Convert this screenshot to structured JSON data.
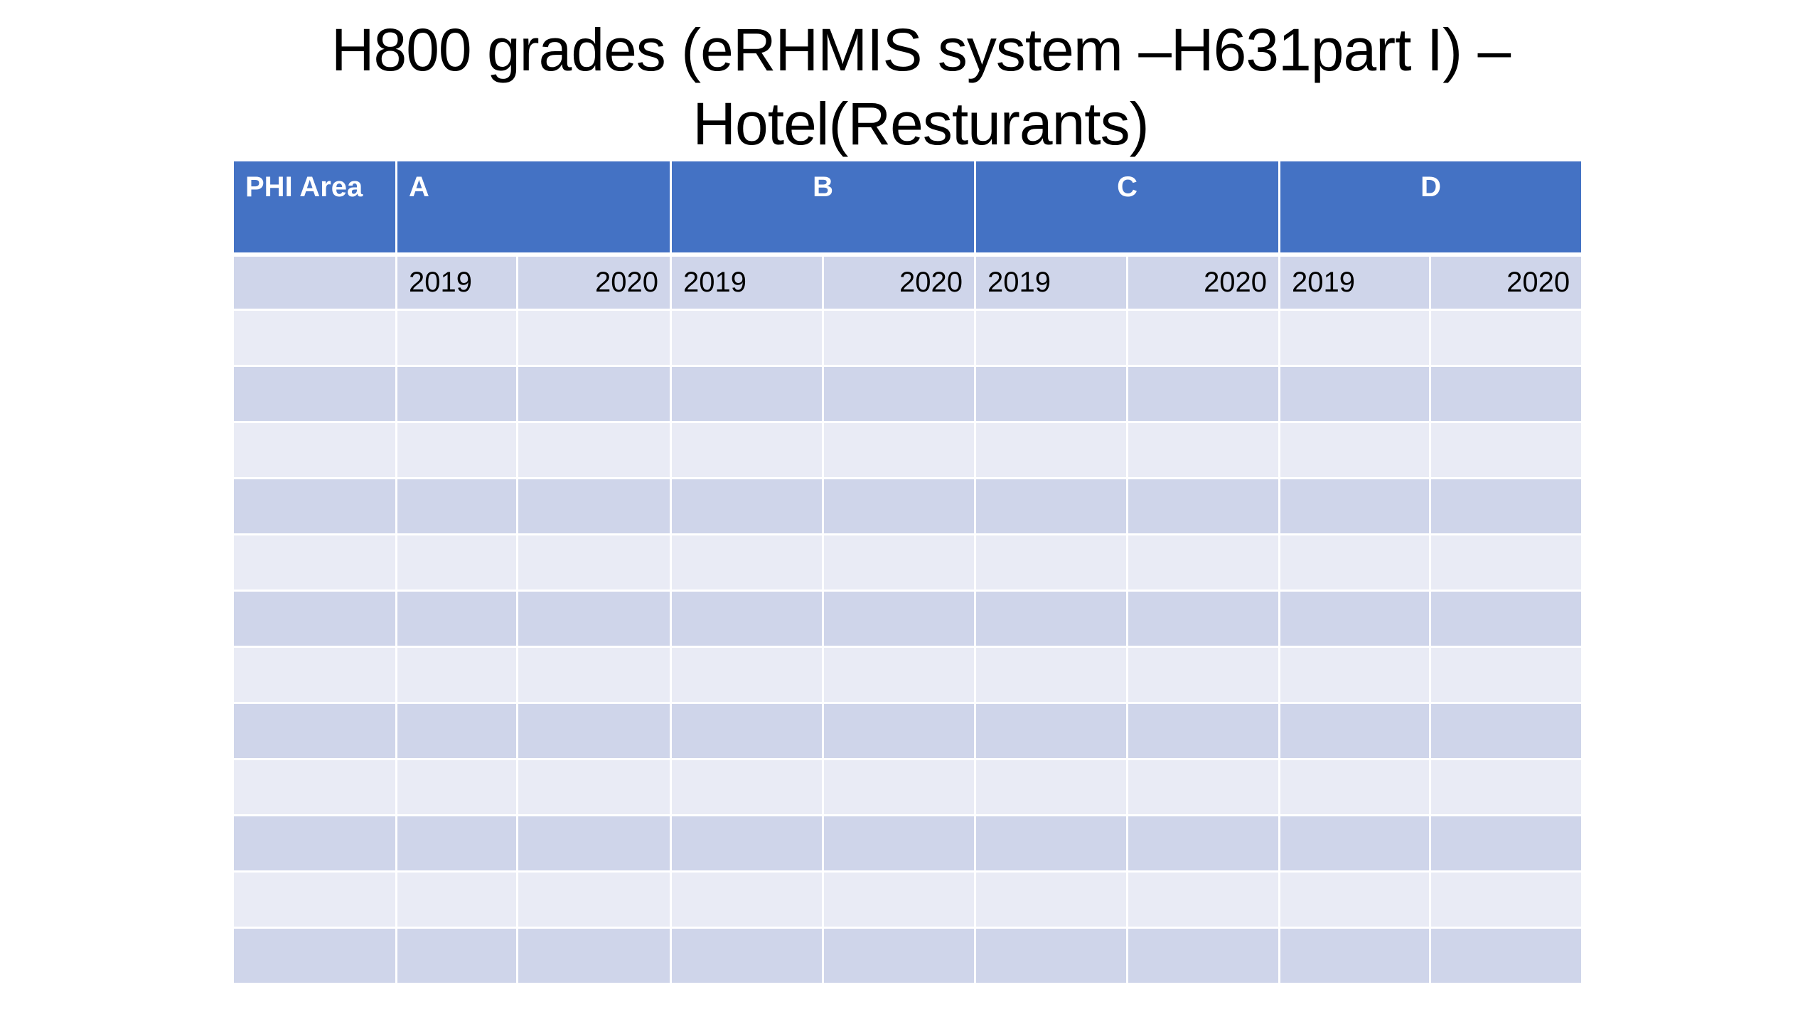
{
  "slide": {
    "title_line1": "H800 grades (eRHMIS system –H631part I) –",
    "title_line2": "Hotel(Resturants)"
  },
  "table": {
    "header": {
      "phi_area": "PHI Area",
      "groups": [
        "A",
        "B",
        "C",
        "D"
      ]
    },
    "years": [
      "2019",
      "2020",
      "2019",
      "2020",
      "2019",
      "2020",
      "2019",
      "2020"
    ],
    "empty_rows": 12
  },
  "colors": {
    "header_bg": "#4472c4",
    "row_dark": "#cfd5ea",
    "row_light": "#e9ebf5"
  }
}
